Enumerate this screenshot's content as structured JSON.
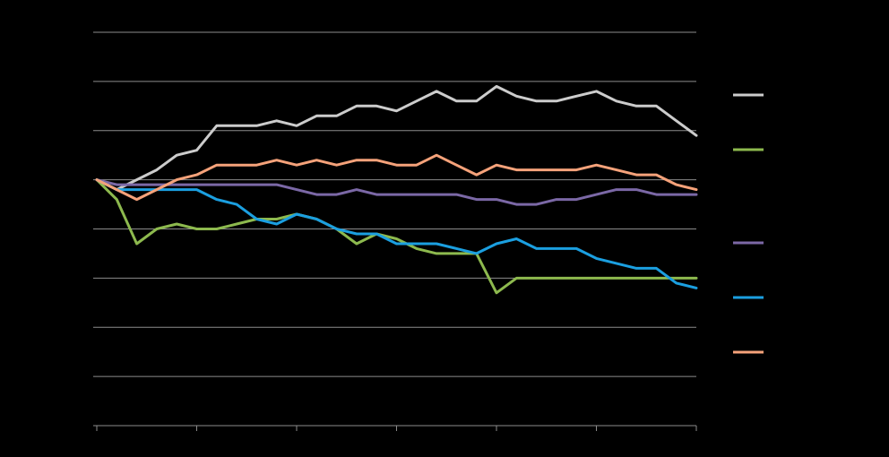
{
  "chart_data": {
    "type": "line",
    "title": "",
    "xlabel": "",
    "ylabel": "",
    "ylim": [
      -50,
      30
    ],
    "y_gridlines": [
      -50,
      -40,
      -30,
      -20,
      -10,
      0,
      10,
      20,
      30
    ],
    "x_count": 31,
    "grid": true,
    "legend": "right",
    "x": [
      0,
      1,
      2,
      3,
      4,
      5,
      6,
      7,
      8,
      9,
      10,
      11,
      12,
      13,
      14,
      15,
      16,
      17,
      18,
      19,
      20,
      21,
      22,
      23,
      24,
      25,
      26,
      27,
      28,
      29,
      30
    ],
    "series": [
      {
        "color": "#cccccc",
        "values": [
          0,
          -2,
          0,
          2,
          5,
          6,
          11,
          11,
          11,
          12,
          11,
          13,
          13,
          15,
          15,
          14,
          16,
          18,
          16,
          16,
          19,
          17,
          16,
          16,
          17,
          18,
          16,
          15,
          15,
          12,
          9
        ]
      },
      {
        "color": "#8db94e",
        "values": [
          0,
          -4,
          -13,
          -10,
          -9,
          -10,
          -10,
          -9,
          -8,
          -8,
          -7,
          -8,
          -10,
          -13,
          -11,
          -12,
          -14,
          -15,
          -15,
          -15,
          -23,
          -20,
          -20,
          -20,
          -20,
          -20,
          -20,
          -20,
          -20,
          -20,
          -20
        ]
      },
      {
        "color": "#7b68a6",
        "values": [
          0,
          -1,
          -1,
          -1,
          -1,
          -1,
          -1,
          -1,
          -1,
          -1,
          -2,
          -3,
          -3,
          -2,
          -3,
          -3,
          -3,
          -3,
          -3,
          -4,
          -4,
          -5,
          -5,
          -4,
          -4,
          -3,
          -2,
          -2,
          -3,
          -3,
          -3
        ]
      },
      {
        "color": "#1b9fe0",
        "values": [
          0,
          -2,
          -2,
          -2,
          -2,
          -2,
          -4,
          -5,
          -8,
          -9,
          -7,
          -8,
          -10,
          -11,
          -11,
          -13,
          -13,
          -13,
          -14,
          -15,
          -13,
          -12,
          -14,
          -14,
          -14,
          -16,
          -17,
          -18,
          -18,
          -21,
          -22
        ]
      },
      {
        "color": "#f5a27a",
        "values": [
          0,
          -2,
          -4,
          -2,
          0,
          1,
          3,
          3,
          3,
          4,
          3,
          4,
          3,
          4,
          4,
          3,
          3,
          5,
          3,
          1,
          3,
          2,
          2,
          2,
          2,
          3,
          2,
          1,
          1,
          -1,
          -2
        ]
      }
    ]
  }
}
